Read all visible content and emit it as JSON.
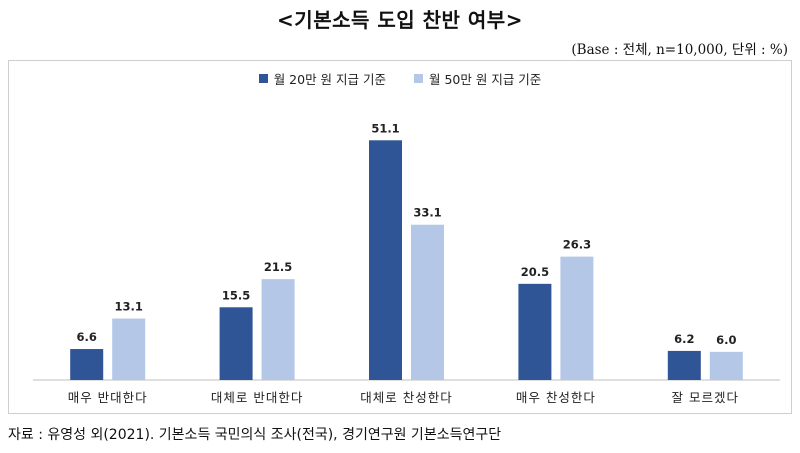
{
  "title": "<기본소득 도입 찬반 여부>",
  "base_note": "(Base : 전체, n=10,000, 단위 : %)",
  "source": "자료 : 유영성 외(2021). 기본소득 국민의식 조사(전국), 경기연구원 기본소득연구단",
  "colors": {
    "series1": "#2f5597",
    "series2": "#b4c7e7"
  },
  "chart_data": {
    "type": "bar",
    "categories": [
      "매우 반대한다",
      "대체로 반대한다",
      "대체로 찬성한다",
      "매우 찬성한다",
      "잘 모르겠다"
    ],
    "series": [
      {
        "name": "월 20만 원 지급 기준",
        "values": [
          6.6,
          15.5,
          51.1,
          20.5,
          6.2
        ]
      },
      {
        "name": "월 50만 원 지급 기준",
        "values": [
          13.1,
          21.5,
          33.1,
          26.3,
          6.0
        ]
      }
    ],
    "title": "<기본소득 도입 찬반 여부>",
    "xlabel": "",
    "ylabel": "",
    "ylim": [
      0,
      55
    ],
    "grid": false,
    "legend_position": "top-center"
  }
}
